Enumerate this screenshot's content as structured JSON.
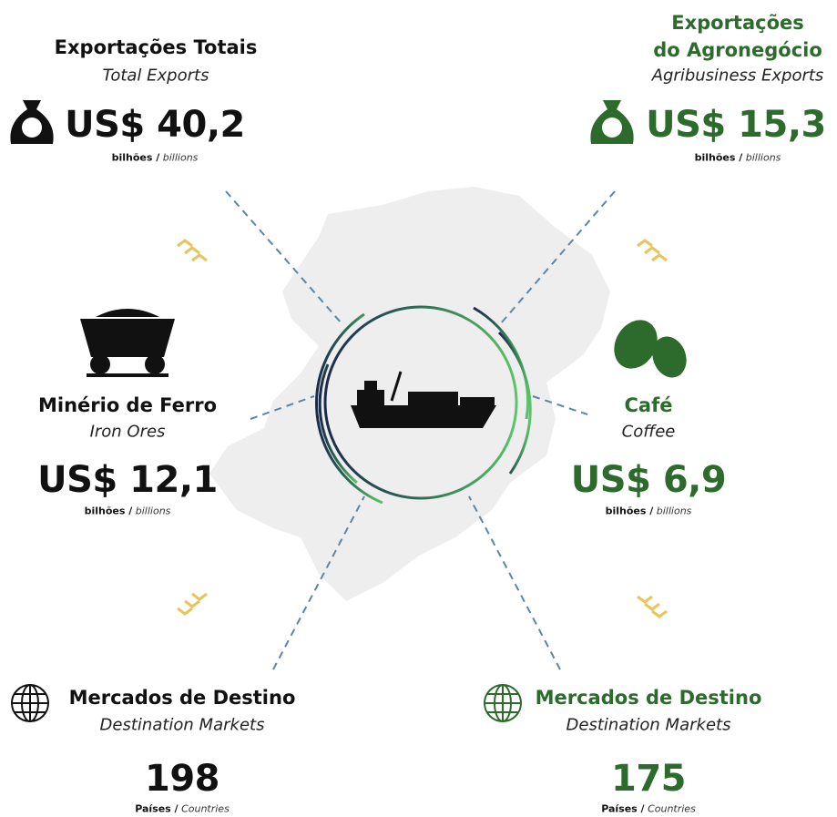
{
  "total": {
    "title": "Exportações Totais",
    "subtitle": "Total Exports",
    "value": "US$ 40,2",
    "unit": "bilhões /",
    "unit_en": "billions"
  },
  "agribusiness": {
    "title": [
      "Exportações",
      "do Agronegócio"
    ],
    "subtitle": "Agribusiness Exports",
    "value": "US$ 15,3",
    "unit": "bilhões /",
    "unit_en": "billions"
  },
  "iron": {
    "title": "Minério de Ferro",
    "subtitle": "Iron Ores",
    "value": "US$ 12,1",
    "unit": "bilhões /",
    "unit_en": "billions"
  },
  "coffee": {
    "title": "Café",
    "subtitle": "Coffee",
    "value": "US$ 6,9",
    "unit": "bilhões /",
    "unit_en": "billions"
  },
  "markets": [
    {
      "title": "Mercados de Destino",
      "subtitle": "Destination Markets",
      "value": "198",
      "unit": "Países /",
      "unit_en": "Countries"
    },
    {
      "title": "Mercados de Destino",
      "subtitle": "Destination Markets",
      "value": "175",
      "unit": "Países /",
      "unit_en": "Countries"
    }
  ]
}
